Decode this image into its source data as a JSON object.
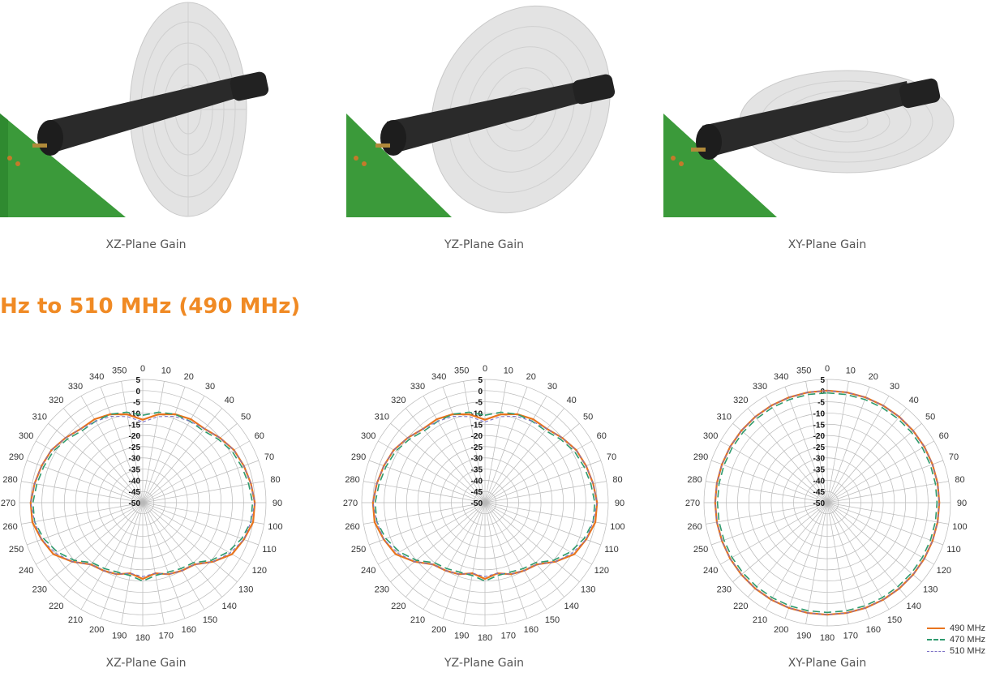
{
  "renders": [
    {
      "caption": "XZ-Plane Gain"
    },
    {
      "caption": "YZ-Plane Gain"
    },
    {
      "caption": "XY-Plane Gain"
    }
  ],
  "heading": "Hz to 510 MHz (490 MHz)",
  "colors": {
    "s490": "#e8741e",
    "s470": "#2e9a6e",
    "s510": "#7b6fc4",
    "grid": "#b9b9b9",
    "board": "#3b9a3a",
    "antenna": "#2a2a2a",
    "disc": "#e3e3e3"
  },
  "chart_data": [
    {
      "type": "polar",
      "plane": "XZ",
      "caption": "XZ-Plane Gain",
      "angle_labels": [
        "0",
        "10",
        "20",
        "30",
        "40",
        "50",
        "60",
        "70",
        "80",
        "90",
        "100",
        "110",
        "120",
        "130",
        "140",
        "150",
        "160",
        "170",
        "180",
        "190",
        "200",
        "210",
        "220",
        "230",
        "240",
        "250",
        "260",
        "270",
        "280",
        "290",
        "300",
        "310",
        "320",
        "330",
        "340",
        "350"
      ],
      "radial_labels": [
        "5",
        "0",
        "-5",
        "-10",
        "-15",
        "-20",
        "-25",
        "-30",
        "-35",
        "-40",
        "-45",
        "-50"
      ],
      "rlim": [
        -50,
        5
      ],
      "series": [
        {
          "name": "490 MHz",
          "values": [
            -13,
            -10,
            -8,
            -7,
            -7,
            -5,
            -3,
            -2,
            -1,
            0,
            0,
            -2,
            -4,
            -9,
            -14,
            -15,
            -16,
            -18,
            -16,
            -18,
            -16,
            -15,
            -14,
            -9,
            -4,
            -2,
            0,
            0,
            -1,
            -2,
            -3,
            -5,
            -7,
            -7,
            -8,
            -10
          ]
        },
        {
          "name": "470 MHz",
          "values": [
            -11,
            -9,
            -8,
            -8,
            -8,
            -6,
            -4,
            -3,
            -2,
            -1,
            -1,
            -3,
            -6,
            -10,
            -15,
            -16,
            -17,
            -17,
            -15,
            -17,
            -17,
            -16,
            -15,
            -10,
            -6,
            -3,
            -1,
            -1,
            -2,
            -3,
            -4,
            -6,
            -8,
            -8,
            -8,
            -9
          ]
        },
        {
          "name": "510 MHz",
          "values": [
            -14,
            -11,
            -9,
            -8,
            -7,
            -5,
            -3,
            -2,
            -1,
            0,
            -1,
            -2,
            -5,
            -9,
            -14,
            -15,
            -16,
            -18,
            -17,
            -18,
            -16,
            -15,
            -14,
            -9,
            -5,
            -2,
            -1,
            0,
            -1,
            -2,
            -3,
            -5,
            -7,
            -8,
            -9,
            -11
          ]
        }
      ]
    },
    {
      "type": "polar",
      "plane": "YZ",
      "caption": "YZ-Plane Gain",
      "angle_labels": [
        "0",
        "10",
        "20",
        "30",
        "40",
        "50",
        "60",
        "70",
        "80",
        "90",
        "100",
        "110",
        "120",
        "130",
        "140",
        "150",
        "160",
        "170",
        "180",
        "190",
        "200",
        "210",
        "220",
        "230",
        "240",
        "250",
        "260",
        "270",
        "280",
        "290",
        "300",
        "310",
        "320",
        "330",
        "340",
        "350"
      ],
      "radial_labels": [
        "5",
        "0",
        "-5",
        "-10",
        "-15",
        "-20",
        "-25",
        "-30",
        "-35",
        "-40",
        "-45",
        "-50"
      ],
      "rlim": [
        -50,
        5
      ],
      "series": [
        {
          "name": "490 MHz",
          "values": [
            -13,
            -10,
            -8,
            -7,
            -7,
            -5,
            -3,
            -2,
            -1,
            0,
            0,
            -2,
            -4,
            -9,
            -14,
            -15,
            -16,
            -18,
            -16,
            -18,
            -16,
            -15,
            -14,
            -9,
            -4,
            -2,
            0,
            0,
            -1,
            -2,
            -3,
            -5,
            -7,
            -7,
            -8,
            -10
          ]
        },
        {
          "name": "470 MHz",
          "values": [
            -11,
            -9,
            -8,
            -8,
            -8,
            -6,
            -4,
            -3,
            -2,
            -1,
            -1,
            -3,
            -6,
            -10,
            -15,
            -16,
            -17,
            -17,
            -15,
            -17,
            -17,
            -16,
            -15,
            -10,
            -6,
            -3,
            -1,
            -1,
            -2,
            -3,
            -4,
            -6,
            -8,
            -8,
            -8,
            -9
          ]
        },
        {
          "name": "510 MHz",
          "values": [
            -14,
            -11,
            -9,
            -8,
            -7,
            -5,
            -3,
            -2,
            -1,
            0,
            -1,
            -2,
            -5,
            -9,
            -14,
            -15,
            -16,
            -18,
            -17,
            -18,
            -16,
            -15,
            -14,
            -9,
            -5,
            -2,
            -1,
            0,
            -1,
            -2,
            -3,
            -5,
            -7,
            -8,
            -9,
            -11
          ]
        }
      ]
    },
    {
      "type": "polar",
      "plane": "XY",
      "caption": "XY-Plane Gain",
      "angle_labels": [
        "0",
        "10",
        "20",
        "30",
        "40",
        "50",
        "60",
        "70",
        "80",
        "90",
        "100",
        "110",
        "120",
        "130",
        "140",
        "150",
        "160",
        "170",
        "180",
        "190",
        "200",
        "210",
        "220",
        "230",
        "240",
        "250",
        "260",
        "270",
        "280",
        "290",
        "300",
        "310",
        "320",
        "330",
        "340",
        "350"
      ],
      "radial_labels": [
        "5",
        "0",
        "-5",
        "-10",
        "-15",
        "-20",
        "-25",
        "-30",
        "-35",
        "-40",
        "-45",
        "-50"
      ],
      "rlim": [
        -50,
        5
      ],
      "series": [
        {
          "name": "490 MHz",
          "values": [
            0,
            0,
            0,
            0,
            0,
            0,
            0,
            0,
            0,
            0,
            0,
            0,
            0,
            0,
            0,
            0,
            0,
            0,
            0,
            0,
            0,
            0,
            0,
            0,
            0,
            0,
            0,
            0,
            0,
            0,
            0,
            0,
            0,
            0,
            0,
            0
          ]
        },
        {
          "name": "470 MHz",
          "values": [
            -1,
            -1,
            -1,
            -1,
            -1,
            -1,
            -1,
            -1,
            -1,
            -1,
            -1,
            -1,
            -1,
            -1,
            -1,
            -1,
            -1,
            -1,
            -1,
            -1,
            -1,
            -1,
            -1,
            -1,
            -1,
            -1,
            -1,
            -1,
            -1,
            -1,
            -1,
            -1,
            -1,
            -1,
            -1,
            -1
          ]
        },
        {
          "name": "510 MHz",
          "values": [
            0,
            0,
            0,
            0,
            0,
            0,
            0,
            0,
            0,
            0,
            0,
            0,
            0,
            0,
            0,
            0,
            0,
            0,
            0,
            0,
            0,
            0,
            0,
            0,
            0,
            0,
            0,
            0,
            0,
            0,
            0,
            0,
            0,
            0,
            0,
            0
          ]
        }
      ],
      "legend": {
        "placement": "bottom-right",
        "entries": [
          "490 MHz",
          "470 MHz",
          "510 MHz"
        ]
      }
    }
  ]
}
